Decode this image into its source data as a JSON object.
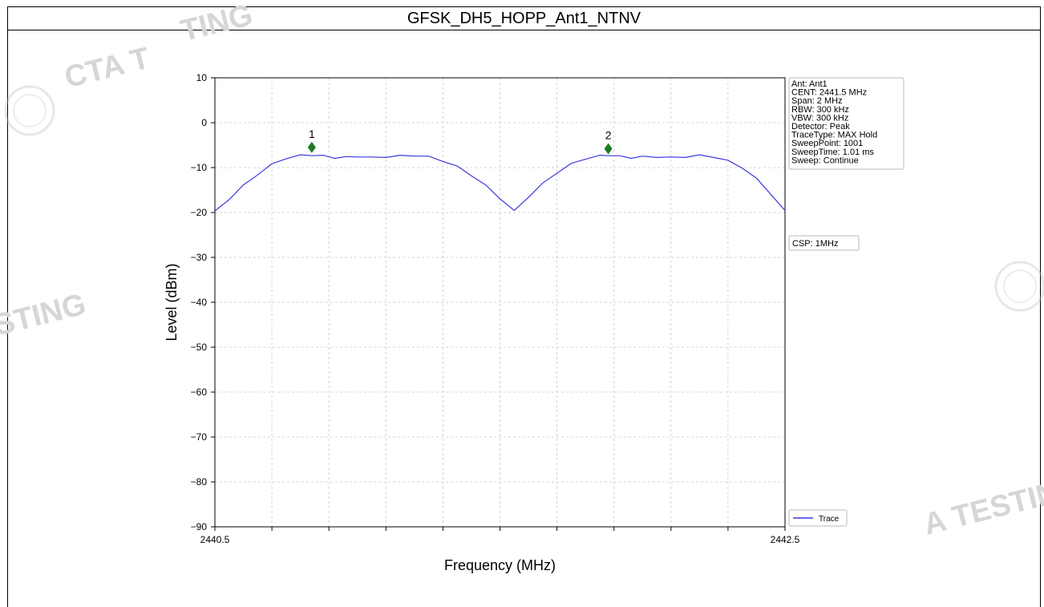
{
  "page": {
    "title": "GFSK_DH5_HOPP_Ant1_NTNV",
    "watermarks": [
      "CTA T",
      "TING",
      "STING",
      "A TESTING"
    ]
  },
  "chart_data": {
    "type": "line",
    "xlabel": "Frequency (MHz)",
    "ylabel": "Level (dBm)",
    "xlim": [
      2440.5,
      2442.5
    ],
    "ylim": [
      -90,
      10
    ],
    "x_ticklabels": [
      "2440.5",
      "2442.5"
    ],
    "y_ticks": [
      10,
      0,
      -10,
      -20,
      -30,
      -40,
      -50,
      -60,
      -70,
      -80,
      -90
    ],
    "grid": true,
    "series": [
      {
        "name": "Trace",
        "color": "#3a3adb",
        "points": [
          [
            2440.5,
            -19.8
          ],
          [
            2440.55,
            -17.0
          ],
          [
            2440.6,
            -14.0
          ],
          [
            2440.65,
            -11.5
          ],
          [
            2440.7,
            -9.3
          ],
          [
            2440.75,
            -7.9
          ],
          [
            2440.8,
            -7.3
          ],
          [
            2440.84,
            -7.2
          ],
          [
            2440.88,
            -7.4
          ],
          [
            2440.92,
            -7.8
          ],
          [
            2440.96,
            -7.7
          ],
          [
            2441.0,
            -7.5
          ],
          [
            2441.05,
            -7.8
          ],
          [
            2441.1,
            -7.6
          ],
          [
            2441.15,
            -7.4
          ],
          [
            2441.2,
            -7.3
          ],
          [
            2441.25,
            -7.6
          ],
          [
            2441.3,
            -8.5
          ],
          [
            2441.35,
            -9.8
          ],
          [
            2441.4,
            -11.7
          ],
          [
            2441.45,
            -14.0
          ],
          [
            2441.5,
            -16.8
          ],
          [
            2441.55,
            -19.7
          ],
          [
            2441.6,
            -16.5
          ],
          [
            2441.65,
            -13.6
          ],
          [
            2441.7,
            -11.1
          ],
          [
            2441.75,
            -9.2
          ],
          [
            2441.8,
            -8.0
          ],
          [
            2441.85,
            -7.4
          ],
          [
            2441.88,
            -7.2
          ],
          [
            2441.92,
            -7.5
          ],
          [
            2441.96,
            -7.8
          ],
          [
            2442.0,
            -7.6
          ],
          [
            2442.05,
            -7.6
          ],
          [
            2442.1,
            -7.8
          ],
          [
            2442.15,
            -7.6
          ],
          [
            2442.2,
            -7.3
          ],
          [
            2442.25,
            -7.6
          ],
          [
            2442.3,
            -8.5
          ],
          [
            2442.35,
            -10.0
          ],
          [
            2442.4,
            -12.5
          ],
          [
            2442.45,
            -15.8
          ],
          [
            2442.5,
            -19.7
          ]
        ]
      }
    ],
    "markers": [
      {
        "label": "1",
        "x": 2440.84,
        "y": -5.5
      },
      {
        "label": "2",
        "x": 2441.88,
        "y": -5.8
      }
    ],
    "legend": {
      "position": "bottom-right",
      "label": "Trace"
    },
    "info_box": [
      "Ant: Ant1",
      "CENT: 2441.5 MHz",
      "Span: 2 MHz",
      "RBW: 300 kHz",
      "VBW: 300 kHz",
      "Detector: Peak",
      "TraceType: MAX Hold",
      "SweepPoint: 1001",
      "SweepTime: 1.01 ms",
      "Sweep: Continue"
    ],
    "csp_box": "CSP: 1MHz"
  }
}
